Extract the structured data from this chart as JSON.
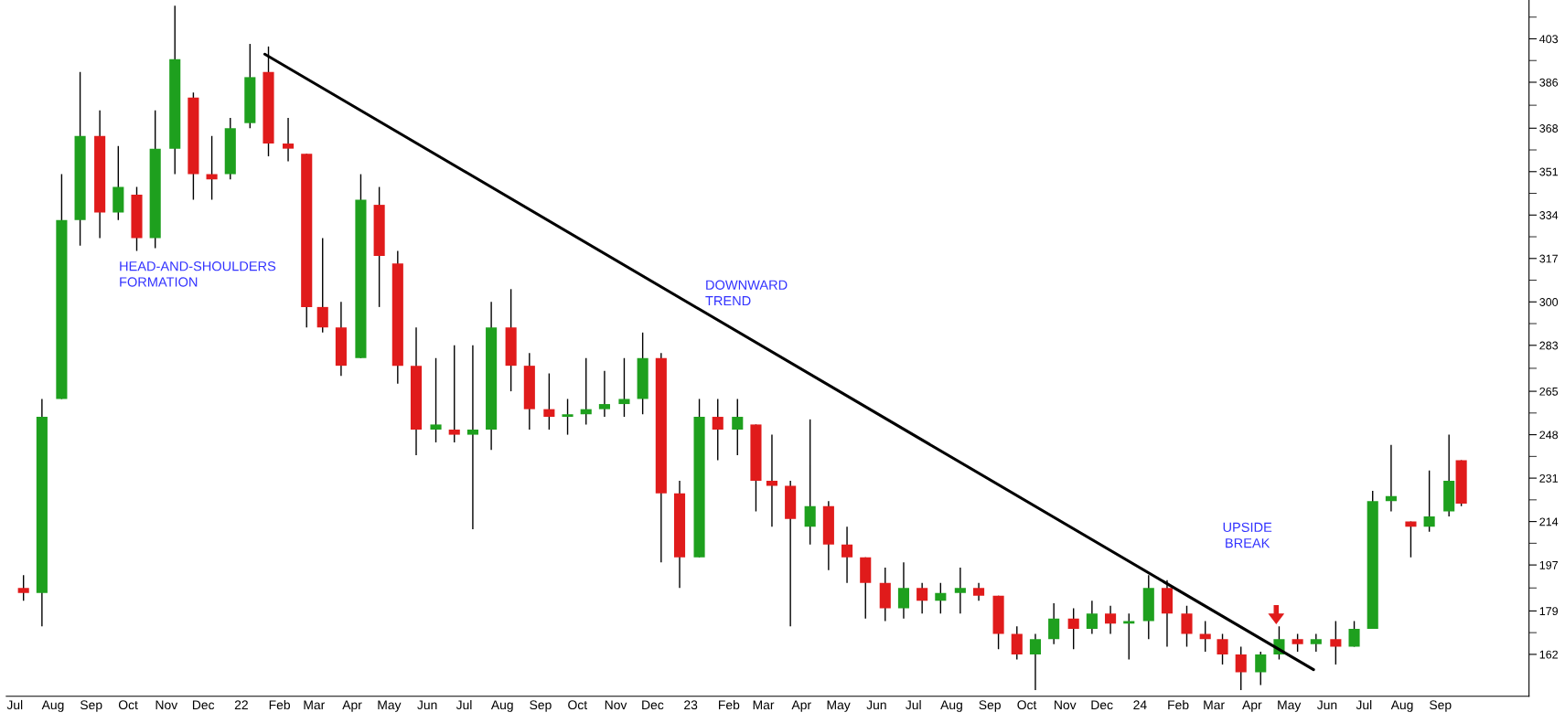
{
  "chart_data": {
    "type": "candlestick",
    "x": [
      "2021-07-08",
      "2021-07-23",
      "2021-08-08",
      "2021-08-23",
      "2021-09-08",
      "2021-09-23",
      "2021-10-08",
      "2021-10-23",
      "2021-11-08",
      "2021-11-23",
      "2021-12-08",
      "2021-12-23",
      "2022-01-08",
      "2022-01-23",
      "2022-02-08",
      "2022-02-23",
      "2022-03-08",
      "2022-03-23",
      "2022-04-08",
      "2022-04-23",
      "2022-05-08",
      "2022-05-23",
      "2022-06-08",
      "2022-06-23",
      "2022-07-08",
      "2022-07-23",
      "2022-08-08",
      "2022-08-23",
      "2022-09-08",
      "2022-09-23",
      "2022-10-08",
      "2022-10-23",
      "2022-11-08",
      "2022-11-23",
      "2022-12-08",
      "2022-12-23",
      "2023-01-08",
      "2023-01-23",
      "2023-02-08",
      "2023-02-23",
      "2023-03-08",
      "2023-03-23",
      "2023-04-08",
      "2023-04-23",
      "2023-05-08",
      "2023-05-23",
      "2023-06-08",
      "2023-06-23",
      "2023-07-08",
      "2023-07-23",
      "2023-08-08",
      "2023-08-23",
      "2023-09-08",
      "2023-09-23",
      "2023-10-08",
      "2023-10-23",
      "2023-11-08",
      "2023-11-23",
      "2023-12-08",
      "2023-12-23",
      "2024-01-08",
      "2024-01-23",
      "2024-02-08",
      "2024-02-23",
      "2024-03-08",
      "2024-03-23",
      "2024-04-08",
      "2024-04-23",
      "2024-05-08",
      "2024-05-23",
      "2024-06-08",
      "2024-06-23",
      "2024-07-08",
      "2024-07-23",
      "2024-08-08",
      "2024-08-23",
      "2024-09-08",
      "2024-09-18"
    ],
    "ohlc": [
      [
        188,
        193,
        183,
        186
      ],
      [
        186,
        262,
        173,
        255
      ],
      [
        262,
        350,
        262,
        332
      ],
      [
        332,
        390,
        322,
        365
      ],
      [
        365,
        375,
        325,
        335
      ],
      [
        335,
        361,
        332,
        345
      ],
      [
        342,
        345,
        320,
        325
      ],
      [
        325,
        375,
        321,
        360
      ],
      [
        360,
        416,
        350,
        395
      ],
      [
        380,
        382,
        340,
        350
      ],
      [
        350,
        365,
        340,
        348
      ],
      [
        350,
        372,
        348,
        368
      ],
      [
        370,
        401,
        368,
        388
      ],
      [
        390,
        400,
        357,
        362
      ],
      [
        362,
        372,
        355,
        360
      ],
      [
        358,
        358,
        290,
        298
      ],
      [
        298,
        325,
        288,
        290
      ],
      [
        290,
        300,
        271,
        275
      ],
      [
        278,
        350,
        278,
        340
      ],
      [
        338,
        345,
        298,
        318
      ],
      [
        315,
        320,
        268,
        275
      ],
      [
        275,
        290,
        240,
        250
      ],
      [
        250,
        278,
        245,
        252
      ],
      [
        250,
        283,
        245,
        248
      ],
      [
        248,
        283,
        211,
        250
      ],
      [
        250,
        300,
        242,
        290
      ],
      [
        290,
        305,
        265,
        275
      ],
      [
        275,
        280,
        250,
        258
      ],
      [
        258,
        272,
        250,
        255
      ],
      [
        255,
        262,
        248,
        256
      ],
      [
        256,
        278,
        252,
        258
      ],
      [
        258,
        273,
        255,
        260
      ],
      [
        260,
        278,
        255,
        262
      ],
      [
        262,
        288,
        256,
        278
      ],
      [
        278,
        280,
        198,
        225
      ],
      [
        225,
        230,
        188,
        200
      ],
      [
        200,
        262,
        200,
        255
      ],
      [
        255,
        262,
        238,
        250
      ],
      [
        250,
        262,
        240,
        255
      ],
      [
        252,
        252,
        218,
        230
      ],
      [
        230,
        248,
        212,
        228
      ],
      [
        228,
        230,
        173,
        215
      ],
      [
        212,
        254,
        205,
        220
      ],
      [
        220,
        222,
        195,
        205
      ],
      [
        205,
        212,
        190,
        200
      ],
      [
        200,
        200,
        176,
        190
      ],
      [
        190,
        196,
        175,
        180
      ],
      [
        180,
        198,
        176,
        188
      ],
      [
        188,
        190,
        178,
        183
      ],
      [
        183,
        190,
        178,
        186
      ],
      [
        186,
        196,
        178,
        188
      ],
      [
        188,
        190,
        183,
        185
      ],
      [
        185,
        185,
        164,
        170
      ],
      [
        170,
        173,
        160,
        162
      ],
      [
        162,
        170,
        148,
        168
      ],
      [
        168,
        182,
        166,
        176
      ],
      [
        176,
        180,
        164,
        172
      ],
      [
        172,
        183,
        170,
        178
      ],
      [
        178,
        181,
        170,
        174
      ],
      [
        174,
        178,
        160,
        175
      ],
      [
        175,
        193,
        168,
        188
      ],
      [
        188,
        191,
        165,
        178
      ],
      [
        178,
        181,
        165,
        170
      ],
      [
        170,
        175,
        163,
        168
      ],
      [
        168,
        170,
        158,
        162
      ],
      [
        162,
        165,
        148,
        155
      ],
      [
        155,
        163,
        150,
        162
      ],
      [
        162,
        173,
        160,
        168
      ],
      [
        168,
        170,
        163,
        166
      ],
      [
        166,
        170,
        163,
        168
      ],
      [
        168,
        175,
        158,
        165
      ],
      [
        165,
        175,
        165,
        172
      ],
      [
        172,
        226,
        172,
        222
      ],
      [
        222,
        244,
        218,
        224
      ],
      [
        214,
        214,
        200,
        212
      ],
      [
        212,
        234,
        210,
        216
      ],
      [
        218,
        248,
        216,
        230
      ],
      [
        238,
        238,
        220,
        221
      ]
    ],
    "colors": [
      "#e01b1b",
      "#1ea01e",
      "#1ea01e",
      "#1ea01e",
      "#e01b1b",
      "#1ea01e",
      "#e01b1b",
      "#1ea01e",
      "#1ea01e",
      "#e01b1b",
      "#e01b1b",
      "#1ea01e",
      "#1ea01e",
      "#e01b1b",
      "#e01b1b",
      "#e01b1b",
      "#e01b1b",
      "#e01b1b",
      "#1ea01e",
      "#e01b1b",
      "#e01b1b",
      "#e01b1b",
      "#1ea01e",
      "#e01b1b",
      "#1ea01e",
      "#1ea01e",
      "#e01b1b",
      "#e01b1b",
      "#e01b1b",
      "#1ea01e",
      "#1ea01e",
      "#1ea01e",
      "#1ea01e",
      "#1ea01e",
      "#e01b1b",
      "#e01b1b",
      "#1ea01e",
      "#e01b1b",
      "#1ea01e",
      "#e01b1b",
      "#e01b1b",
      "#e01b1b",
      "#1ea01e",
      "#e01b1b",
      "#e01b1b",
      "#e01b1b",
      "#e01b1b",
      "#1ea01e",
      "#e01b1b",
      "#1ea01e",
      "#1ea01e",
      "#e01b1b",
      "#e01b1b",
      "#e01b1b",
      "#1ea01e",
      "#1ea01e",
      "#e01b1b",
      "#1ea01e",
      "#e01b1b",
      "#1ea01e",
      "#1ea01e",
      "#e01b1b",
      "#e01b1b",
      "#e01b1b",
      "#e01b1b",
      "#e01b1b",
      "#1ea01e",
      "#1ea01e",
      "#e01b1b",
      "#1ea01e",
      "#e01b1b",
      "#1ea01e",
      "#1ea01e",
      "#1ea01e",
      "#e01b1b",
      "#1ea01e",
      "#1ea01e",
      "#e01b1b"
    ],
    "series": [
      {
        "type": "line",
        "color": "#000000",
        "x": [
          "2022-01-20",
          "2024-05-21"
        ],
        "values": [
          397,
          156
        ]
      }
    ],
    "annotations": [
      "HEAD-AND-SHOULDERS\nFORMATION",
      "DOWNWARD\nTREND",
      "UPSIDE\nBREAK"
    ],
    "xlim": [
      "2021-06-24",
      "2024-11-12"
    ],
    "xticks": [
      {
        "value": "2021-07-01",
        "label": "Jul"
      },
      {
        "value": "2021-08-01",
        "label": "Aug"
      },
      {
        "value": "2021-09-01",
        "label": "Sep"
      },
      {
        "value": "2021-10-01",
        "label": "Oct"
      },
      {
        "value": "2021-11-01",
        "label": "Nov"
      },
      {
        "value": "2021-12-01",
        "label": "Dec"
      },
      {
        "value": "2022-01-01",
        "label": "22"
      },
      {
        "value": "2022-02-01",
        "label": "Feb"
      },
      {
        "value": "2022-03-01",
        "label": "Mar"
      },
      {
        "value": "2022-04-01",
        "label": "Apr"
      },
      {
        "value": "2022-05-01",
        "label": "May"
      },
      {
        "value": "2022-06-01",
        "label": "Jun"
      },
      {
        "value": "2022-07-01",
        "label": "Jul"
      },
      {
        "value": "2022-08-01",
        "label": "Aug"
      },
      {
        "value": "2022-09-01",
        "label": "Sep"
      },
      {
        "value": "2022-10-01",
        "label": "Oct"
      },
      {
        "value": "2022-11-01",
        "label": "Nov"
      },
      {
        "value": "2022-12-01",
        "label": "Dec"
      },
      {
        "value": "2023-01-01",
        "label": "23"
      },
      {
        "value": "2023-02-01",
        "label": "Feb"
      },
      {
        "value": "2023-03-01",
        "label": "Mar"
      },
      {
        "value": "2023-04-01",
        "label": "Apr"
      },
      {
        "value": "2023-05-01",
        "label": "May"
      },
      {
        "value": "2023-06-01",
        "label": "Jun"
      },
      {
        "value": "2023-07-01",
        "label": "Jul"
      },
      {
        "value": "2023-08-01",
        "label": "Aug"
      },
      {
        "value": "2023-09-01",
        "label": "Sep"
      },
      {
        "value": "2023-10-01",
        "label": "Oct"
      },
      {
        "value": "2023-11-01",
        "label": "Nov"
      },
      {
        "value": "2023-12-01",
        "label": "Dec"
      },
      {
        "value": "2024-01-01",
        "label": "24"
      },
      {
        "value": "2024-02-01",
        "label": "Feb"
      },
      {
        "value": "2024-03-01",
        "label": "Mar"
      },
      {
        "value": "2024-04-01",
        "label": "Apr"
      },
      {
        "value": "2024-05-01",
        "label": "May"
      },
      {
        "value": "2024-06-01",
        "label": "Jun"
      },
      {
        "value": "2024-07-01",
        "label": "Jul"
      },
      {
        "value": "2024-08-01",
        "label": "Aug"
      },
      {
        "value": "2024-09-01",
        "label": "Sep"
      }
    ],
    "ylim": [
      145.6,
      418.2
    ],
    "yticks": [
      162,
      {
        "value": 170.5,
        "label": null
      },
      179,
      {
        "value": 188,
        "label": null
      },
      197,
      {
        "value": 205.5,
        "label": null
      },
      214,
      {
        "value": 222.5,
        "label": null
      },
      231,
      {
        "value": 239.5,
        "label": null
      },
      248,
      {
        "value": 256.5,
        "label": null
      },
      265,
      {
        "value": 274,
        "label": null
      },
      283,
      {
        "value": 291.5,
        "label": null
      },
      300,
      {
        "value": 308.5,
        "label": null
      },
      317,
      {
        "value": 325.5,
        "label": null
      },
      334,
      {
        "value": 342.5,
        "label": null
      },
      351,
      {
        "value": 359.5,
        "label": null
      },
      368,
      {
        "value": 377,
        "label": null
      },
      386,
      {
        "value": 394.5,
        "label": null
      },
      403,
      {
        "value": 411.5,
        "label": null
      }
    ],
    "grid": false,
    "legend": false
  }
}
